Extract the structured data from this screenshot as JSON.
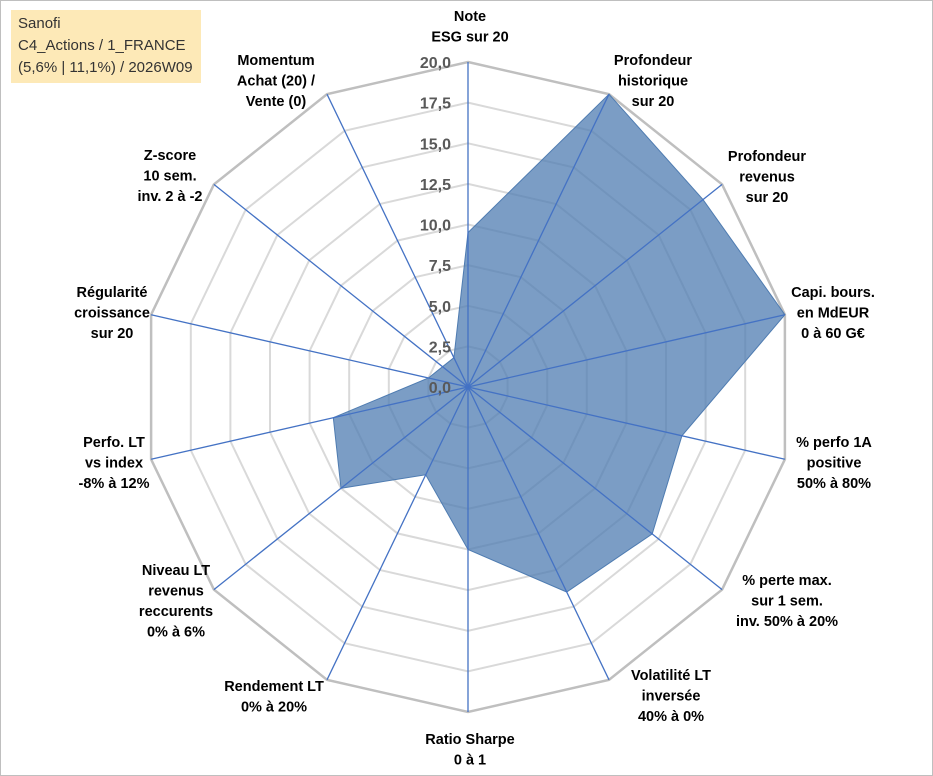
{
  "title_box": {
    "line1": "Sanofi",
    "line2": "C4_Actions / 1_FRANCE",
    "line3": "(5,6% | 11,1%) / 2026W09"
  },
  "colors": {
    "fill": "#4f7cb1",
    "axis": "#4472c4",
    "grid": "#d9d9d9",
    "outer_ring": "#bfbfbf",
    "tick_text": "#595959",
    "label_text": "#000000",
    "title_bg": "#fde9b7"
  },
  "chart_data": {
    "type": "radar",
    "rmin": 0,
    "rmax": 20,
    "tick_step": 2.5,
    "tick_labels": [
      "0,0",
      "2,5",
      "5,0",
      "7,5",
      "10,0",
      "12,5",
      "15,0",
      "17,5",
      "20,0"
    ],
    "gridlines": true,
    "axes": [
      {
        "lines": [
          "Note",
          "ESG sur 20"
        ],
        "value": 9.5
      },
      {
        "lines": [
          "Profondeur",
          "historique",
          "sur 20"
        ],
        "value": 20
      },
      {
        "lines": [
          "Profondeur",
          "revenus",
          "sur 20"
        ],
        "value": 18.5
      },
      {
        "lines": [
          "Capi. bours.",
          "en MdEUR",
          "0 à 60 G€"
        ],
        "value": 20
      },
      {
        "lines": [
          "% perfo 1A",
          "positive",
          "50% à 80%"
        ],
        "value": 13.5
      },
      {
        "lines": [
          "% perte max.",
          "sur 1 sem.",
          "inv. 50% à 20%"
        ],
        "value": 14.5
      },
      {
        "lines": [
          "Volatilité LT",
          "inversée",
          "40% à 0%"
        ],
        "value": 14.0
      },
      {
        "lines": [
          "Ratio Sharpe",
          "0 à 1"
        ],
        "value": 10.0
      },
      {
        "lines": [
          "Rendement LT",
          "0% à 20%"
        ],
        "value": 6.0
      },
      {
        "lines": [
          "Niveau LT",
          "revenus",
          "reccurents",
          "0% à 6%"
        ],
        "value": 10.0
      },
      {
        "lines": [
          "Perfo. LT",
          "vs index",
          "-8% à 12%"
        ],
        "value": 8.5
      },
      {
        "lines": [
          "Régularité",
          "croissance",
          "sur 20"
        ],
        "value": 2.5
      },
      {
        "lines": [
          "Z-score",
          "10 sem.",
          "inv. 2 à -2"
        ],
        "value": 2.0
      },
      {
        "lines": [
          "Momentum",
          "Achat (20) /",
          "Vente (0)"
        ],
        "value": 2.0
      }
    ]
  }
}
